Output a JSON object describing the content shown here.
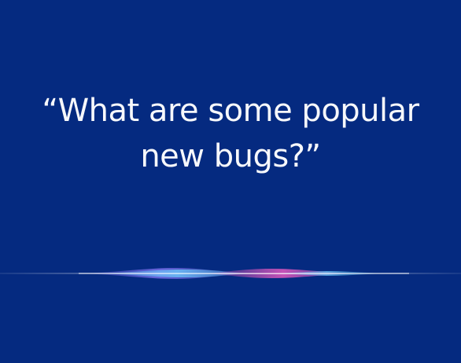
{
  "siri": {
    "query_line_1": "“What are some popular",
    "query_line_2": "new bugs?”",
    "background_color": "#052a80",
    "text_color": "#ffffff",
    "waveform_colors": [
      "#ffffff",
      "#6fd3ff",
      "#8e7bff",
      "#ff5fc8"
    ]
  }
}
